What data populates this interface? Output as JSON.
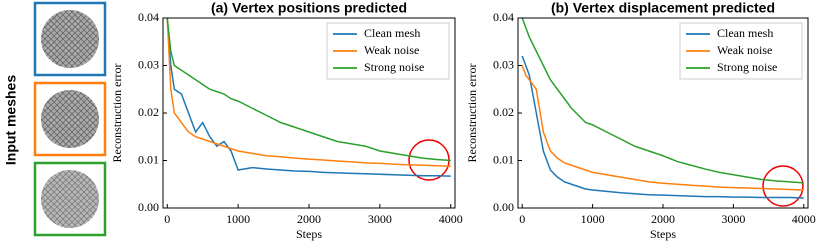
{
  "side_label": "Input meshes",
  "chart_data": [
    {
      "type": "line",
      "title": "(a) Vertex positions predicted",
      "x_label": "Steps",
      "y_label": "Reconstruction error",
      "x": [
        0,
        50,
        100,
        200,
        300,
        400,
        500,
        600,
        700,
        800,
        900,
        1000,
        1200,
        1400,
        1600,
        1800,
        2000,
        2200,
        2400,
        2600,
        2800,
        3000,
        3200,
        3400,
        3600,
        3800,
        4000
      ],
      "series": [
        {
          "name": "Clean mesh",
          "color": "#1f77b4",
          "values": [
            0.04,
            0.03,
            0.025,
            0.024,
            0.02,
            0.016,
            0.018,
            0.015,
            0.013,
            0.014,
            0.012,
            0.008,
            0.0085,
            0.0082,
            0.008,
            0.0078,
            0.0077,
            0.0075,
            0.0074,
            0.0073,
            0.0072,
            0.0071,
            0.007,
            0.0069,
            0.0068,
            0.0068,
            0.0067
          ]
        },
        {
          "name": "Weak noise",
          "color": "#ff7f0e",
          "values": [
            0.04,
            0.025,
            0.02,
            0.018,
            0.016,
            0.015,
            0.0145,
            0.014,
            0.0135,
            0.013,
            0.0125,
            0.012,
            0.0115,
            0.011,
            0.0108,
            0.0105,
            0.0103,
            0.0101,
            0.0099,
            0.0097,
            0.0095,
            0.0094,
            0.0092,
            0.0091,
            0.009,
            0.0089,
            0.0088
          ]
        },
        {
          "name": "Strong noise",
          "color": "#2ca02c",
          "values": [
            0.04,
            0.033,
            0.03,
            0.029,
            0.028,
            0.027,
            0.026,
            0.025,
            0.0245,
            0.024,
            0.023,
            0.0225,
            0.021,
            0.0195,
            0.018,
            0.017,
            0.016,
            0.015,
            0.014,
            0.0135,
            0.013,
            0.012,
            0.0115,
            0.011,
            0.0105,
            0.0102,
            0.01
          ]
        }
      ],
      "xlim": [
        -60,
        4060
      ],
      "ylim": [
        0,
        0.04
      ],
      "xticks": [
        0,
        1000,
        2000,
        3000,
        4000
      ],
      "yticks": [
        {
          "value": 0,
          "label": "0.00"
        },
        {
          "value": 0.01,
          "label": "0.01"
        },
        {
          "value": 0.02,
          "label": "0.02"
        },
        {
          "value": 0.03,
          "label": "0.03"
        },
        {
          "value": 0.04,
          "label": "0.04"
        }
      ],
      "legend": "upper right"
    },
    {
      "type": "line",
      "title": "(b) Vertex displacement predicted",
      "x_label": "Steps",
      "y_label": "Reconstruction error",
      "x": [
        0,
        50,
        100,
        200,
        300,
        400,
        500,
        600,
        700,
        800,
        900,
        1000,
        1200,
        1400,
        1600,
        1800,
        2000,
        2200,
        2400,
        2600,
        2800,
        3000,
        3200,
        3400,
        3600,
        3800,
        4000
      ],
      "series": [
        {
          "name": "Clean mesh",
          "color": "#1f77b4",
          "values": [
            0.032,
            0.03,
            0.028,
            0.02,
            0.012,
            0.008,
            0.0065,
            0.0055,
            0.005,
            0.0045,
            0.004,
            0.0038,
            0.0035,
            0.0032,
            0.003,
            0.0028,
            0.0027,
            0.0026,
            0.0025,
            0.0024,
            0.0024,
            0.0023,
            0.0023,
            0.0022,
            0.0022,
            0.0022,
            0.0021
          ]
        },
        {
          "name": "Weak noise",
          "color": "#ff7f0e",
          "values": [
            0.03,
            0.028,
            0.027,
            0.025,
            0.016,
            0.012,
            0.0105,
            0.0095,
            0.009,
            0.0085,
            0.008,
            0.0075,
            0.007,
            0.0065,
            0.006,
            0.0055,
            0.0052,
            0.005,
            0.0048,
            0.0046,
            0.0044,
            0.0043,
            0.0042,
            0.0041,
            0.004,
            0.0039,
            0.0038
          ]
        },
        {
          "name": "Strong noise",
          "color": "#2ca02c",
          "values": [
            0.04,
            0.038,
            0.036,
            0.033,
            0.03,
            0.027,
            0.025,
            0.023,
            0.021,
            0.0195,
            0.018,
            0.0175,
            0.016,
            0.0145,
            0.013,
            0.012,
            0.011,
            0.0098,
            0.009,
            0.0082,
            0.0075,
            0.007,
            0.0065,
            0.006,
            0.0057,
            0.0055,
            0.0053
          ]
        }
      ],
      "xlim": [
        -60,
        4060
      ],
      "ylim": [
        0,
        0.04
      ],
      "xticks": [
        0,
        1000,
        2000,
        3000,
        4000
      ],
      "yticks": [
        {
          "value": 0,
          "label": "0.00"
        },
        {
          "value": 0.01,
          "label": "0.01"
        },
        {
          "value": 0.02,
          "label": "0.02"
        },
        {
          "value": 0.03,
          "label": "0.03"
        },
        {
          "value": 0.04,
          "label": "0.04"
        }
      ],
      "legend": "upper right"
    }
  ]
}
